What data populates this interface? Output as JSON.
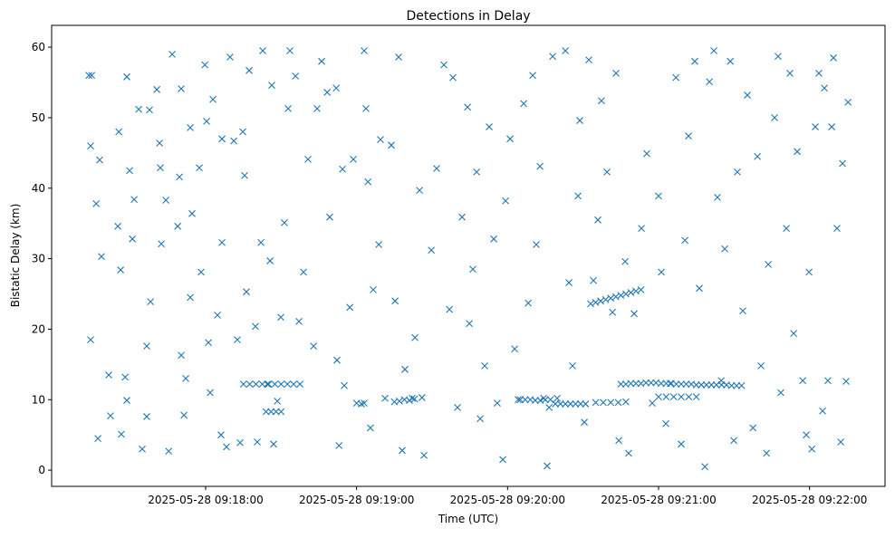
{
  "chart_data": {
    "type": "scatter",
    "title": "Detections in Delay",
    "xlabel": "Time (UTC)",
    "ylabel": "Bistatic Delay (km)",
    "x_origin": "2025-05-28 09:17:00",
    "x_units": "seconds after x_origin",
    "xlim": [
      -1.2,
      330
    ],
    "ylim": [
      -2.3,
      63.1
    ],
    "xticks": [
      {
        "value": 60,
        "label": "2025-05-28 09:18:00"
      },
      {
        "value": 120,
        "label": "2025-05-28 09:19:00"
      },
      {
        "value": 180,
        "label": "2025-05-28 09:20:00"
      },
      {
        "value": 240,
        "label": "2025-05-28 09:21:00"
      },
      {
        "value": 300,
        "label": "2025-05-28 09:22:00"
      }
    ],
    "yticks": [
      {
        "value": 0,
        "label": "0"
      },
      {
        "value": 10,
        "label": "10"
      },
      {
        "value": 20,
        "label": "20"
      },
      {
        "value": 30,
        "label": "30"
      },
      {
        "value": 40,
        "label": "40"
      },
      {
        "value": 50,
        "label": "50"
      },
      {
        "value": 60,
        "label": "60"
      }
    ],
    "grid": false,
    "marker": "x",
    "color": "#1f77b4",
    "points": [
      [
        13.6,
        56
      ],
      [
        14.7,
        56
      ],
      [
        14.3,
        46
      ],
      [
        14.3,
        18.5
      ],
      [
        16.5,
        37.8
      ],
      [
        17.2,
        4.5
      ],
      [
        17.9,
        44
      ],
      [
        18.6,
        30.3
      ],
      [
        21.5,
        13.5
      ],
      [
        22.2,
        7.7
      ],
      [
        25.1,
        34.6
      ],
      [
        25.5,
        48
      ],
      [
        26.5,
        5.1
      ],
      [
        26.2,
        28.4
      ],
      [
        28.7,
        55.8
      ],
      [
        29.8,
        42.5
      ],
      [
        28,
        13.2
      ],
      [
        28.7,
        9.9
      ],
      [
        30.9,
        32.8
      ],
      [
        31.6,
        38.4
      ],
      [
        33.4,
        51.2
      ],
      [
        34.8,
        3.0
      ],
      [
        36.6,
        17.6
      ],
      [
        36.6,
        7.6
      ],
      [
        37.7,
        51.1
      ],
      [
        38.1,
        23.9
      ],
      [
        40.6,
        54
      ],
      [
        42,
        42.9
      ],
      [
        42.4,
        32.1
      ],
      [
        41.7,
        46.4
      ],
      [
        44.2,
        38.3
      ],
      [
        45.3,
        2.7
      ],
      [
        46.7,
        59
      ],
      [
        48.9,
        34.6
      ],
      [
        49.6,
        41.6
      ],
      [
        50.3,
        54.1
      ],
      [
        50.3,
        16.3
      ],
      [
        51.4,
        7.8
      ],
      [
        52.1,
        13
      ],
      [
        53.9,
        48.6
      ],
      [
        54.6,
        36.4
      ],
      [
        53.9,
        24.5
      ],
      [
        57.5,
        42.9
      ],
      [
        58.2,
        28.1
      ],
      [
        59.7,
        57.5
      ],
      [
        60.4,
        49.5
      ],
      [
        61.1,
        18.1
      ],
      [
        61.8,
        11
      ],
      [
        62.9,
        52.6
      ],
      [
        64.7,
        22
      ],
      [
        66.1,
        5
      ],
      [
        66.5,
        47
      ],
      [
        66.5,
        32.3
      ],
      [
        68.3,
        3.3
      ],
      [
        69.7,
        58.6
      ],
      [
        71.2,
        46.7
      ],
      [
        72.6,
        18.5
      ],
      [
        73.7,
        3.9
      ],
      [
        74.8,
        48
      ],
      [
        75.5,
        41.8
      ],
      [
        76.2,
        25.3
      ],
      [
        77.3,
        56.7
      ],
      [
        79.8,
        20.4
      ],
      [
        80.5,
        4
      ],
      [
        82,
        32.3
      ],
      [
        82.7,
        59.5
      ],
      [
        84.5,
        12.2
      ],
      [
        86.3,
        54.6
      ],
      [
        87,
        3.7
      ],
      [
        85.6,
        29.7
      ],
      [
        88.5,
        9.8
      ],
      [
        89.9,
        21.7
      ],
      [
        91.3,
        35.1
      ],
      [
        92.8,
        51.3
      ],
      [
        93.5,
        59.5
      ],
      [
        95.7,
        55.9
      ],
      [
        97.1,
        21.1
      ],
      [
        98.9,
        28.1
      ],
      [
        100.7,
        44.1
      ],
      [
        102.9,
        17.6
      ],
      [
        104.3,
        51.3
      ],
      [
        106.1,
        58
      ],
      [
        108.3,
        53.6
      ],
      [
        109.3,
        35.9
      ],
      [
        111.9,
        54.2
      ],
      [
        112.2,
        15.6
      ],
      [
        113,
        3.5
      ],
      [
        114.4,
        42.7
      ],
      [
        115.1,
        12
      ],
      [
        117.3,
        23.1
      ],
      [
        118.7,
        44.1
      ],
      [
        121.9,
        9.4
      ],
      [
        123,
        59.5
      ],
      [
        123.7,
        51.3
      ],
      [
        124.5,
        40.9
      ],
      [
        125.5,
        6
      ],
      [
        126.6,
        25.6
      ],
      [
        128.8,
        32
      ],
      [
        129.5,
        46.9
      ],
      [
        131.3,
        10.2
      ],
      [
        133.8,
        46.1
      ],
      [
        135.3,
        24
      ],
      [
        136.7,
        58.6
      ],
      [
        138.1,
        2.8
      ],
      [
        139.2,
        14.3
      ],
      [
        142.1,
        10.2
      ],
      [
        143.2,
        18.8
      ],
      [
        145,
        39.7
      ],
      [
        146.8,
        2.1
      ],
      [
        149.7,
        31.2
      ],
      [
        151.8,
        42.8
      ],
      [
        154.7,
        57.5
      ],
      [
        156.9,
        22.8
      ],
      [
        158.3,
        55.7
      ],
      [
        160.1,
        8.9
      ],
      [
        161.9,
        35.9
      ],
      [
        164.1,
        51.5
      ],
      [
        164.8,
        20.8
      ],
      [
        166.2,
        28.5
      ],
      [
        167.7,
        42.3
      ],
      [
        169.1,
        7.3
      ],
      [
        170.9,
        14.8
      ],
      [
        172.7,
        48.7
      ],
      [
        174.5,
        32.8
      ],
      [
        175.9,
        9.5
      ],
      [
        178.1,
        1.5
      ],
      [
        179.2,
        38.2
      ],
      [
        181,
        47
      ],
      [
        182.8,
        17.2
      ],
      [
        184.2,
        10
      ],
      [
        186.4,
        52
      ],
      [
        188.2,
        23.7
      ],
      [
        190,
        56
      ],
      [
        191.4,
        32
      ],
      [
        192.9,
        43.1
      ],
      [
        194.3,
        10.2
      ],
      [
        195.7,
        0.6
      ],
      [
        196.5,
        8.9
      ],
      [
        197.9,
        58.7
      ],
      [
        199.7,
        10.2
      ],
      [
        203,
        59.5
      ],
      [
        204.4,
        26.6
      ],
      [
        205.8,
        14.8
      ],
      [
        208,
        38.9
      ],
      [
        208.7,
        49.6
      ],
      [
        210.5,
        6.8
      ],
      [
        212.3,
        58.2
      ],
      [
        214.1,
        26.9
      ],
      [
        215.9,
        35.5
      ],
      [
        217.3,
        52.4
      ],
      [
        219.5,
        42.3
      ],
      [
        221.7,
        22.4
      ],
      [
        223.1,
        56.3
      ],
      [
        224.2,
        4.2
      ],
      [
        226.7,
        29.6
      ],
      [
        228.1,
        2.4
      ],
      [
        230.3,
        22.2
      ],
      [
        233.2,
        34.3
      ],
      [
        235.3,
        44.9
      ],
      [
        237.5,
        9.5
      ],
      [
        240,
        38.9
      ],
      [
        241.1,
        28.1
      ],
      [
        242.9,
        6.6
      ],
      [
        244.7,
        12.3
      ],
      [
        246.9,
        55.7
      ],
      [
        249,
        3.7
      ],
      [
        250.5,
        32.6
      ],
      [
        251.9,
        47.4
      ],
      [
        254.4,
        58
      ],
      [
        256.2,
        25.8
      ],
      [
        258.4,
        0.5
      ],
      [
        260.2,
        55.1
      ],
      [
        262,
        59.5
      ],
      [
        263.4,
        38.7
      ],
      [
        264.9,
        12.7
      ],
      [
        266.3,
        31.4
      ],
      [
        268.5,
        58
      ],
      [
        269.9,
        4.2
      ],
      [
        271.3,
        42.3
      ],
      [
        273.5,
        22.6
      ],
      [
        275.3,
        53.2
      ],
      [
        277.5,
        6
      ],
      [
        279.3,
        44.5
      ],
      [
        280.7,
        14.8
      ],
      [
        282.9,
        2.4
      ],
      [
        283.6,
        29.2
      ],
      [
        286.1,
        50
      ],
      [
        287.5,
        58.7
      ],
      [
        288.6,
        11
      ],
      [
        290.8,
        34.3
      ],
      [
        292.2,
        56.3
      ],
      [
        293.7,
        19.4
      ],
      [
        295.1,
        45.2
      ],
      [
        297.3,
        12.7
      ],
      [
        298.7,
        5
      ],
      [
        299.8,
        28.1
      ],
      [
        300.9,
        3
      ],
      [
        302.3,
        48.7
      ],
      [
        303.7,
        56.3
      ],
      [
        305.2,
        8.4
      ],
      [
        305.9,
        54.2
      ],
      [
        307.3,
        12.7
      ],
      [
        308.8,
        48.7
      ],
      [
        309.5,
        58.5
      ],
      [
        310.9,
        34.3
      ],
      [
        312.4,
        4
      ],
      [
        313.1,
        43.5
      ],
      [
        314.5,
        12.6
      ],
      [
        315.3,
        52.2
      ],
      [
        75,
        12.2
      ],
      [
        77.5,
        12.2
      ],
      [
        80,
        12.2
      ],
      [
        82.5,
        12.2
      ],
      [
        85,
        12.2
      ],
      [
        87.5,
        12.2
      ],
      [
        90,
        12.2
      ],
      [
        92.5,
        12.2
      ],
      [
        95,
        12.2
      ],
      [
        97.5,
        12.2
      ],
      [
        84,
        8.3
      ],
      [
        86,
        8.3
      ],
      [
        88,
        8.3
      ],
      [
        90,
        8.3
      ],
      [
        120,
        9.5
      ],
      [
        123,
        9.5
      ],
      [
        135,
        9.7
      ],
      [
        137,
        9.8
      ],
      [
        139,
        10
      ],
      [
        141,
        9.9
      ],
      [
        143,
        10.1
      ],
      [
        146,
        10.3
      ],
      [
        185,
        10
      ],
      [
        187,
        10
      ],
      [
        189,
        10
      ],
      [
        191,
        9.9
      ],
      [
        193,
        9.9
      ],
      [
        195,
        10
      ],
      [
        197,
        10
      ],
      [
        199,
        9.4
      ],
      [
        201,
        9.4
      ],
      [
        203,
        9.4
      ],
      [
        205,
        9.4
      ],
      [
        207,
        9.4
      ],
      [
        209,
        9.4
      ],
      [
        211,
        9.4
      ],
      [
        215,
        9.6
      ],
      [
        218,
        9.6
      ],
      [
        221,
        9.6
      ],
      [
        224,
        9.6
      ],
      [
        227,
        9.7
      ],
      [
        213,
        23.6
      ],
      [
        215,
        23.8
      ],
      [
        217,
        24
      ],
      [
        219,
        24.2
      ],
      [
        221,
        24.4
      ],
      [
        223,
        24.6
      ],
      [
        225,
        24.8
      ],
      [
        227,
        25
      ],
      [
        229,
        25.2
      ],
      [
        231,
        25.4
      ],
      [
        233,
        25.6
      ],
      [
        225,
        12.2
      ],
      [
        227,
        12.2
      ],
      [
        229,
        12.3
      ],
      [
        231,
        12.3
      ],
      [
        233,
        12.3
      ],
      [
        235,
        12.4
      ],
      [
        237,
        12.4
      ],
      [
        239,
        12.4
      ],
      [
        241,
        12.3
      ],
      [
        243,
        12.3
      ],
      [
        245,
        12.3
      ],
      [
        247,
        12.2
      ],
      [
        249,
        12.2
      ],
      [
        251,
        12.2
      ],
      [
        253,
        12.2
      ],
      [
        255,
        12.1
      ],
      [
        257,
        12.1
      ],
      [
        259,
        12.1
      ],
      [
        261,
        12.1
      ],
      [
        263,
        12.1
      ],
      [
        265,
        12.1
      ],
      [
        267,
        12.1
      ],
      [
        269,
        12
      ],
      [
        271,
        12
      ],
      [
        273,
        12
      ],
      [
        240,
        10.4
      ],
      [
        243,
        10.4
      ],
      [
        246,
        10.4
      ],
      [
        249,
        10.4
      ],
      [
        252,
        10.4
      ],
      [
        255,
        10.4
      ]
    ]
  }
}
